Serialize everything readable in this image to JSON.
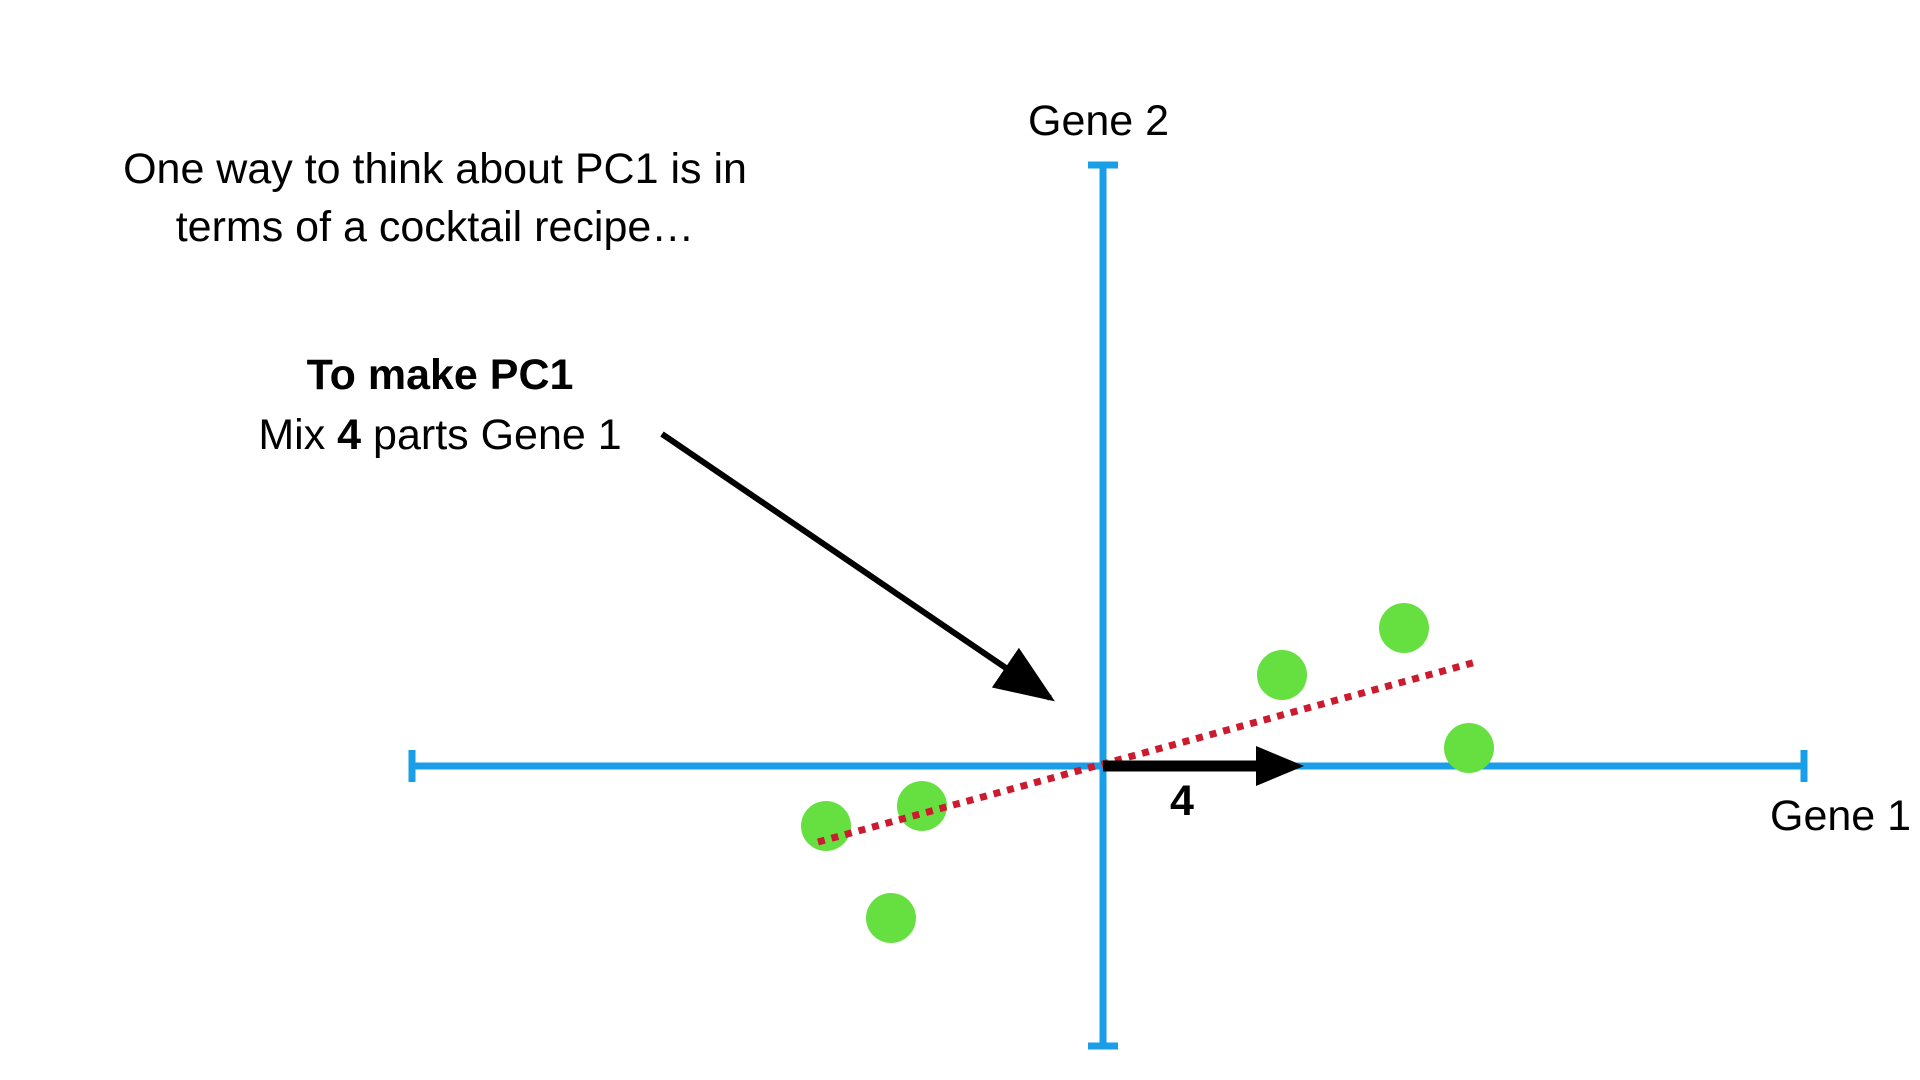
{
  "caption": {
    "line1": "One way to think about PC1 is in",
    "line2": "terms of a cocktail recipe…"
  },
  "recipe": {
    "title": "To make PC1",
    "prefix": "Mix ",
    "amount": "4",
    "suffix": " parts Gene 1"
  },
  "axes": {
    "x_label": "Gene 1",
    "y_label": "Gene 2"
  },
  "vector_label": "4",
  "colors": {
    "axis": "#1a9ee8",
    "points": "#66e040",
    "fit_line": "#cc1a2e",
    "arrow": "#000000"
  }
}
